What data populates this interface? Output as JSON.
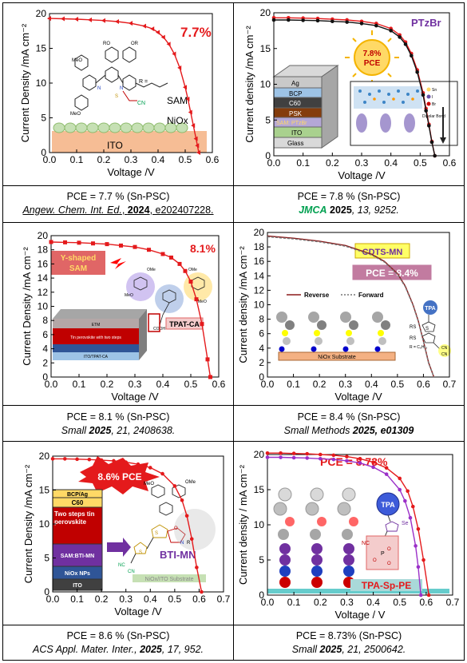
{
  "panels": [
    {
      "id": "p1",
      "ylabel": "Current Density /mA cm⁻²",
      "xlabel": "Voltage /V",
      "pce_label": "7.7%",
      "overlay_labels": [
        "SAM",
        "NiOx",
        "ITO"
      ],
      "r_label": "R =",
      "ring_labels": [
        "MeO",
        "MeO",
        "RO",
        "OR",
        "N",
        "N",
        "S",
        "CN"
      ],
      "caption_line1": "PCE = 7.7 % (Sn-PSC)",
      "caption_journal": "Angew. Chem. Int. Ed.",
      "caption_year": "2024",
      "caption_rest": ", e202407228."
    },
    {
      "id": "p2",
      "ylabel": "Current density /mA cm⁻²",
      "xlabel": "Voltage /V",
      "name_label": "PTzBr",
      "pce_badge": [
        "7.8%",
        "PCE"
      ],
      "stack_layers": [
        "Ag",
        "BCP",
        "C60",
        "PSK",
        "SAM: PTzBr",
        "ITO",
        "Glass"
      ],
      "legend_items": [
        "Sn",
        "I",
        "Br"
      ],
      "dipole_label": "Dipolar Bond",
      "caption_line1": "PCE = 7.8 % (Sn-PSC)",
      "caption_journal": "JMCA",
      "caption_year": "2025",
      "caption_rest": ", 13, 9252."
    },
    {
      "id": "p3",
      "ylabel": "Current Density /mA cm⁻²",
      "xlabel": "Voltage /V",
      "pce_label": "8.1%",
      "y_shaped": [
        "Y-shaped",
        "SAM"
      ],
      "molecule_name": "TPAT-CA",
      "device_labels": [
        "ETM",
        "Tin perovskite with two steps",
        "ITO/TPAT-CA"
      ],
      "ome_labels": [
        "OMe",
        "MeO",
        "OMe",
        "MeO",
        "COOH"
      ],
      "caption_line1": "PCE = 8.1 % (Sn-PSC)",
      "caption_journal": "Small",
      "caption_year": "2025",
      "caption_rest": ", 21, 2408638."
    },
    {
      "id": "p4",
      "ylabel": "Current density /mA cm⁻²",
      "xlabel": "Voltage /V",
      "name_label": "CDTS-MN",
      "pce_label": "PCE = 8.4%",
      "legend": [
        "Reverse",
        "Forward"
      ],
      "substrate_label": "NiOx Substrate",
      "tpa_label": "TPA",
      "mol_labels": [
        "RS",
        "RS",
        "S",
        "R = C₆H₁₃",
        "CN",
        "CN"
      ],
      "caption_line1": "PCE = 8.4 % (Sn-PSC)",
      "caption_journal": "Small Methods",
      "caption_year": "2025",
      "caption_rest": ", e01309"
    },
    {
      "id": "p5",
      "ylabel": "Current Density /mA cm⁻²",
      "xlabel": "Voltage /V",
      "pce_label": "8.6% PCE",
      "stack_layers": [
        "BCP/Ag",
        "C60",
        "Two steps tin perovskite",
        "SAM:BTI-MN",
        "NiOx NPs",
        "ITO"
      ],
      "molecule_name": "BTI-MN",
      "substrate_label": "NiOx/ITO Substrate",
      "mol_labels": [
        "MeO",
        "OMe",
        "S",
        "O",
        "N",
        "R",
        "NC",
        "CN",
        "S"
      ],
      "caption_line1": "PCE = 8.6 % (Sn-PSC)",
      "caption_journal": "ACS Appl. Mater. Inter.",
      "caption_year": "2025",
      "caption_rest": ", 17, 952."
    },
    {
      "id": "p6",
      "ylabel": "Current density / mA cm⁻²",
      "xlabel": "Voltage / V",
      "pce_label": "PCE = 8.73%",
      "tpa_label": "TPA",
      "molecule_name": "TPA-Sp-PE",
      "mol_labels": [
        "Se",
        "NC",
        "P",
        "O",
        "O",
        "O"
      ],
      "caption_line1": "PCE = 8.73% (Sn-PSC)",
      "caption_journal": "Small",
      "caption_year": "2025",
      "caption_rest": ", 21, 2500642."
    }
  ],
  "chart_data": [
    {
      "type": "line",
      "title": "7.7%",
      "xlabel": "Voltage /V",
      "ylabel": "Current Density /mA cm⁻²",
      "xlim": [
        0.0,
        0.6
      ],
      "ylim": [
        0,
        20
      ],
      "xticks": [
        "0.0",
        "0.1",
        "0.2",
        "0.3",
        "0.4",
        "0.5",
        "0.6"
      ],
      "yticks": [
        "0",
        "5",
        "10",
        "15",
        "20"
      ],
      "series": [
        {
          "color": "#e41a1c",
          "x": [
            0.0,
            0.05,
            0.1,
            0.15,
            0.2,
            0.25,
            0.3,
            0.35,
            0.38,
            0.4,
            0.42,
            0.44,
            0.46,
            0.48,
            0.5,
            0.51,
            0.52,
            0.53,
            0.54,
            0.545,
            0.55
          ],
          "y": [
            19.3,
            19.25,
            19.2,
            19.1,
            19.0,
            18.85,
            18.6,
            18.2,
            17.8,
            17.3,
            16.6,
            15.6,
            14.2,
            12.2,
            9.4,
            7.7,
            5.8,
            3.9,
            2.0,
            1.0,
            0.0
          ]
        }
      ]
    },
    {
      "type": "line",
      "title": "",
      "xlabel": "Voltage /V",
      "ylabel": "Current density /mA cm⁻²",
      "xlim": [
        0.0,
        0.6
      ],
      "ylim": [
        0,
        20
      ],
      "xticks": [
        "0.0",
        "0.1",
        "0.2",
        "0.3",
        "0.4",
        "0.5",
        "0.6"
      ],
      "yticks": [
        "0",
        "5",
        "10",
        "15",
        "20"
      ],
      "series": [
        {
          "color": "#e41a1c",
          "x": [
            0.0,
            0.05,
            0.1,
            0.15,
            0.2,
            0.25,
            0.3,
            0.35,
            0.4,
            0.43,
            0.45,
            0.47,
            0.49,
            0.51,
            0.52,
            0.53,
            0.54,
            0.55
          ],
          "y": [
            19.3,
            19.3,
            19.25,
            19.2,
            19.1,
            19.0,
            18.8,
            18.5,
            17.8,
            16.9,
            15.9,
            14.3,
            12.0,
            8.8,
            6.6,
            4.4,
            2.0,
            0.0
          ]
        },
        {
          "color": "#111111",
          "x": [
            0.0,
            0.05,
            0.1,
            0.15,
            0.2,
            0.25,
            0.3,
            0.35,
            0.4,
            0.43,
            0.45,
            0.47,
            0.49,
            0.51,
            0.52,
            0.53,
            0.54,
            0.55
          ],
          "y": [
            19.0,
            19.0,
            18.95,
            18.9,
            18.8,
            18.7,
            18.5,
            18.2,
            17.5,
            16.6,
            15.6,
            14.0,
            11.7,
            8.5,
            6.3,
            4.2,
            1.9,
            0.0
          ]
        }
      ]
    },
    {
      "type": "line",
      "title": "8.1%",
      "xlabel": "Voltage /V",
      "ylabel": "Current Density /mA cm⁻²",
      "xlim": [
        0.0,
        0.6
      ],
      "ylim": [
        0,
        20
      ],
      "xticks": [
        "0.0",
        "0.1",
        "0.2",
        "0.3",
        "0.4",
        "0.5",
        "0.6"
      ],
      "yticks": [
        "0",
        "2",
        "4",
        "6",
        "8",
        "10",
        "12",
        "14",
        "16",
        "18",
        "20"
      ],
      "series": [
        {
          "color": "#e41a1c",
          "x": [
            0.0,
            0.05,
            0.1,
            0.15,
            0.2,
            0.25,
            0.3,
            0.35,
            0.4,
            0.43,
            0.46,
            0.48,
            0.5,
            0.52,
            0.54,
            0.56,
            0.57
          ],
          "y": [
            19.1,
            19.05,
            19.0,
            18.9,
            18.8,
            18.6,
            18.4,
            18.0,
            17.4,
            16.9,
            16.0,
            15.0,
            13.5,
            11.0,
            7.5,
            2.5,
            0.0
          ]
        }
      ]
    },
    {
      "type": "line",
      "title": "PCE = 8.4%",
      "xlabel": "Voltage /V",
      "ylabel": "Current density /mA cm⁻²",
      "xlim": [
        0.0,
        0.7
      ],
      "ylim": [
        0,
        20
      ],
      "xticks": [
        "0.0",
        "0.1",
        "0.2",
        "0.3",
        "0.4",
        "0.5",
        "0.6",
        "0.7"
      ],
      "yticks": [
        "0",
        "2",
        "4",
        "6",
        "8",
        "10",
        "12",
        "14",
        "16",
        "18",
        "20"
      ],
      "series": [
        {
          "name": "Reverse",
          "color": "#8b1a1a",
          "x": [
            0.0,
            0.1,
            0.2,
            0.3,
            0.4,
            0.45,
            0.5,
            0.53,
            0.56,
            0.58,
            0.6,
            0.62,
            0.64
          ],
          "y": [
            19.5,
            19.2,
            18.8,
            18.2,
            17.0,
            16.0,
            14.3,
            12.6,
            10.0,
            7.8,
            5.0,
            2.0,
            0.0
          ]
        },
        {
          "name": "Forward",
          "color": "#777777",
          "x": [
            0.0,
            0.1,
            0.2,
            0.3,
            0.4,
            0.45,
            0.5,
            0.53,
            0.56,
            0.58,
            0.6,
            0.62,
            0.64
          ],
          "y": [
            19.4,
            19.1,
            18.7,
            18.1,
            16.9,
            15.9,
            14.2,
            12.5,
            9.9,
            7.7,
            4.9,
            1.9,
            0.0
          ]
        }
      ]
    },
    {
      "type": "line",
      "title": "8.6% PCE",
      "xlabel": "Voltage /V",
      "ylabel": "Current Density /mA cm⁻²",
      "xlim": [
        0.0,
        0.7
      ],
      "ylim": [
        0,
        20
      ],
      "xticks": [
        "0.0",
        "0.1",
        "0.2",
        "0.3",
        "0.4",
        "0.5",
        "0.6",
        "0.7"
      ],
      "yticks": [
        "0",
        "5",
        "10",
        "15",
        "20"
      ],
      "series": [
        {
          "color": "#e41a1c",
          "x": [
            0.0,
            0.05,
            0.1,
            0.15,
            0.2,
            0.25,
            0.3,
            0.35,
            0.4,
            0.45,
            0.5,
            0.53,
            0.55,
            0.57,
            0.59,
            0.61
          ],
          "y": [
            19.6,
            19.6,
            19.55,
            19.5,
            19.4,
            19.3,
            19.1,
            18.8,
            18.3,
            17.4,
            15.6,
            13.5,
            11.2,
            7.8,
            3.6,
            0.0
          ]
        }
      ]
    },
    {
      "type": "line",
      "title": "PCE = 8.73%",
      "xlabel": "Voltage / V",
      "ylabel": "Current density / mA cm⁻²",
      "xlim": [
        0.0,
        0.7
      ],
      "ylim": [
        0,
        20
      ],
      "xticks": [
        "0.0",
        "0.1",
        "0.2",
        "0.3",
        "0.4",
        "0.5",
        "0.6",
        "0.7"
      ],
      "yticks": [
        "0",
        "5",
        "10",
        "15",
        "20"
      ],
      "series": [
        {
          "color": "#e41a1c",
          "x": [
            0.0,
            0.05,
            0.1,
            0.15,
            0.2,
            0.25,
            0.3,
            0.35,
            0.4,
            0.45,
            0.5,
            0.53,
            0.55,
            0.57,
            0.59,
            0.61
          ],
          "y": [
            20.2,
            20.2,
            20.15,
            20.1,
            20.0,
            19.9,
            19.7,
            19.4,
            18.9,
            18.1,
            16.6,
            14.8,
            12.6,
            9.4,
            5.0,
            0.0
          ]
        },
        {
          "color": "#9b30c8",
          "x": [
            0.0,
            0.05,
            0.1,
            0.15,
            0.2,
            0.25,
            0.3,
            0.35,
            0.4,
            0.45,
            0.5,
            0.52,
            0.54,
            0.56,
            0.57,
            0.58
          ],
          "y": [
            19.6,
            19.6,
            19.55,
            19.5,
            19.4,
            19.3,
            19.1,
            18.8,
            18.2,
            17.2,
            15.0,
            13.4,
            11.0,
            7.0,
            4.0,
            0.0
          ]
        }
      ]
    }
  ]
}
